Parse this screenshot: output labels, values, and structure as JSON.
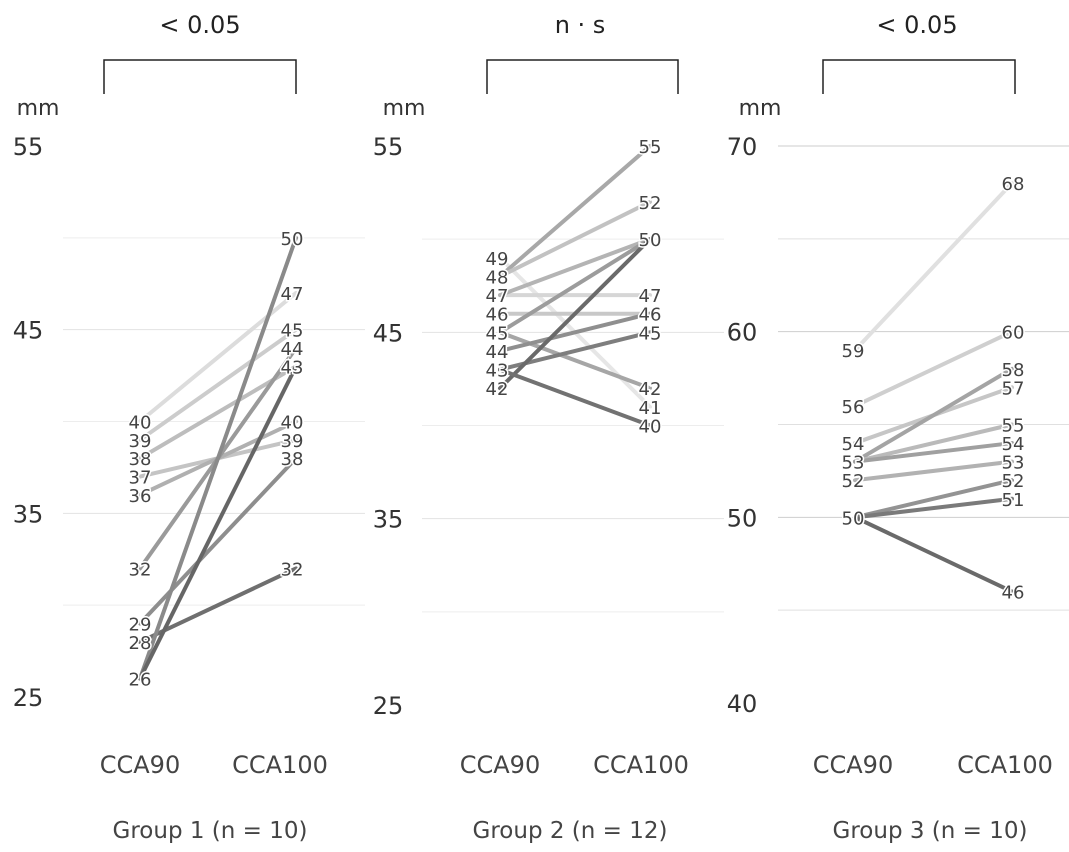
{
  "chart_data": [
    {
      "type": "line",
      "title": "Group 1 (n = 10)",
      "significance": "< 0.05",
      "ylabel": "mm",
      "categories": [
        "CCA90",
        "CCA100"
      ],
      "ylim": [
        25,
        55
      ],
      "yticks": [
        25,
        35,
        45,
        55
      ],
      "grid": true,
      "series": [
        {
          "values": [
            40,
            47
          ],
          "color": "#dcdcdc"
        },
        {
          "values": [
            39,
            45
          ],
          "color": "#cccccc"
        },
        {
          "values": [
            38,
            43
          ],
          "color": "#bdbdbd"
        },
        {
          "values": [
            37,
            39
          ],
          "color": "#c4c4c4"
        },
        {
          "values": [
            36,
            40
          ],
          "color": "#b0b0b0"
        },
        {
          "values": [
            32,
            44
          ],
          "color": "#9a9a9a"
        },
        {
          "values": [
            29,
            38
          ],
          "color": "#8e8e8e"
        },
        {
          "values": [
            28,
            32
          ],
          "color": "#6f6f6f"
        },
        {
          "values": [
            26,
            50
          ],
          "color": "#8a8a8a"
        },
        {
          "values": [
            26,
            43
          ],
          "color": "#666666"
        }
      ],
      "point_labels": {
        "CCA90": [
          "40",
          "39",
          "38",
          "37",
          "36",
          "32",
          "29",
          "28",
          "26"
        ],
        "CCA100": [
          "50",
          "47",
          "45",
          "44",
          "43",
          "40",
          "39",
          "38",
          "32"
        ]
      }
    },
    {
      "type": "line",
      "title": "Group 2 (n = 12)",
      "significance": "n · s",
      "ylabel": "mm",
      "categories": [
        "CCA90",
        "CCA100"
      ],
      "ylim": [
        25,
        55
      ],
      "yticks": [
        25,
        35,
        45,
        55
      ],
      "grid": true,
      "series": [
        {
          "values": [
            49,
            41
          ],
          "color": "#e6e6e6"
        },
        {
          "values": [
            48,
            55
          ],
          "color": "#a8a8a8"
        },
        {
          "values": [
            48,
            52
          ],
          "color": "#c2c2c2"
        },
        {
          "values": [
            47,
            47
          ],
          "color": "#d6d6d6"
        },
        {
          "values": [
            47,
            50
          ],
          "color": "#b4b4b4"
        },
        {
          "values": [
            46,
            46
          ],
          "color": "#c8c8c8"
        },
        {
          "values": [
            45,
            50
          ],
          "color": "#9c9c9c"
        },
        {
          "values": [
            45,
            42
          ],
          "color": "#a6a6a6"
        },
        {
          "values": [
            44,
            46
          ],
          "color": "#8f8f8f"
        },
        {
          "values": [
            43,
            45
          ],
          "color": "#7e7e7e"
        },
        {
          "values": [
            42,
            50
          ],
          "color": "#6a6a6a"
        },
        {
          "values": [
            43,
            40
          ],
          "color": "#727272"
        }
      ],
      "point_labels": {
        "CCA90": [
          "49",
          "48",
          "47",
          "46",
          "45",
          "44",
          "43",
          "42"
        ],
        "CCA100": [
          "55",
          "52",
          "50",
          "47",
          "46",
          "45",
          "42",
          "41",
          "40"
        ]
      }
    },
    {
      "type": "line",
      "title": "Group 3 (n = 10)",
      "significance": "< 0.05",
      "ylabel": "mm",
      "categories": [
        "CCA90",
        "CCA100"
      ],
      "ylim": [
        40,
        70
      ],
      "yticks": [
        40,
        50,
        60,
        70
      ],
      "grid": true,
      "series": [
        {
          "values": [
            59,
            68
          ],
          "color": "#e0e0e0"
        },
        {
          "values": [
            56,
            60
          ],
          "color": "#cfcfcf"
        },
        {
          "values": [
            54,
            57
          ],
          "color": "#c6c6c6"
        },
        {
          "values": [
            53,
            58
          ],
          "color": "#a4a4a4"
        },
        {
          "values": [
            53,
            55
          ],
          "color": "#bababa"
        },
        {
          "values": [
            53,
            54
          ],
          "color": "#a0a0a0"
        },
        {
          "values": [
            52,
            53
          ],
          "color": "#b2b2b2"
        },
        {
          "values": [
            50,
            52
          ],
          "color": "#939393"
        },
        {
          "values": [
            50,
            51
          ],
          "color": "#7a7a7a"
        },
        {
          "values": [
            50,
            46
          ],
          "color": "#6a6a6a"
        }
      ],
      "point_labels": {
        "CCA90": [
          "59",
          "56",
          "54",
          "53",
          "52",
          "50"
        ],
        "CCA100": [
          "68",
          "60",
          "58",
          "57",
          "55",
          "54",
          "53",
          "52",
          "51",
          "46"
        ]
      }
    }
  ]
}
